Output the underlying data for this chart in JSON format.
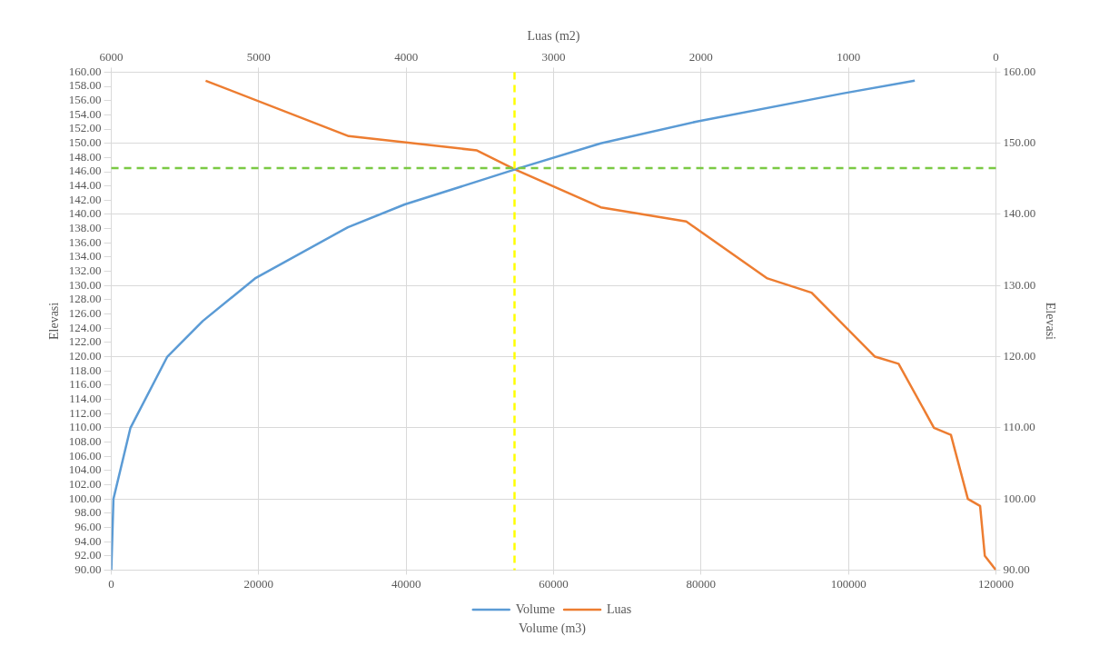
{
  "chart_data": {
    "type": "line",
    "xlabel": "Volume (m3)",
    "x2label": "Luas (m2)",
    "ylabel": "Elevasi",
    "y2label": "Elevasi",
    "xlim": [
      0,
      120000
    ],
    "xticks": [
      0,
      20000,
      40000,
      60000,
      80000,
      100000,
      120000
    ],
    "x2lim": [
      6000,
      0
    ],
    "x2ticks": [
      6000,
      5000,
      4000,
      3000,
      2000,
      1000,
      0
    ],
    "ylim": [
      90,
      160
    ],
    "yticks": [
      {
        "value": 90,
        "label": "90.00"
      },
      {
        "value": 92,
        "label": "92.00"
      },
      {
        "value": 94,
        "label": "94.00"
      },
      {
        "value": 96,
        "label": "96.00"
      },
      {
        "value": 98,
        "label": "98.00"
      },
      {
        "value": 100,
        "label": "100.00"
      },
      {
        "value": 102,
        "label": "102.00"
      },
      {
        "value": 104,
        "label": "104.00"
      },
      {
        "value": 106,
        "label": "106.00"
      },
      {
        "value": 108,
        "label": "108.00"
      },
      {
        "value": 110,
        "label": "110.00"
      },
      {
        "value": 112,
        "label": "112.00"
      },
      {
        "value": 114,
        "label": "114.00"
      },
      {
        "value": 116,
        "label": "116.00"
      },
      {
        "value": 118,
        "label": "118.00"
      },
      {
        "value": 120,
        "label": "120.00"
      },
      {
        "value": 122,
        "label": "122.00"
      },
      {
        "value": 124,
        "label": "124.00"
      },
      {
        "value": 126,
        "label": "126.00"
      },
      {
        "value": 128,
        "label": "128.00"
      },
      {
        "value": 130,
        "label": "130.00"
      },
      {
        "value": 132,
        "label": "132.00"
      },
      {
        "value": 134,
        "label": "134.00"
      },
      {
        "value": 136,
        "label": "136.00"
      },
      {
        "value": 138,
        "label": "138.00"
      },
      {
        "value": 140,
        "label": "140.00"
      },
      {
        "value": 142,
        "label": "142.00"
      },
      {
        "value": 144,
        "label": "144.00"
      },
      {
        "value": 146,
        "label": "146.00"
      },
      {
        "value": 148,
        "label": "148.00"
      },
      {
        "value": 150,
        "label": "150.00"
      },
      {
        "value": 152,
        "label": "152.00"
      },
      {
        "value": 154,
        "label": "154.00"
      },
      {
        "value": 156,
        "label": "156.00"
      },
      {
        "value": 158,
        "label": "158.00"
      },
      {
        "value": 160,
        "label": "160.00"
      }
    ],
    "y2lim": [
      90,
      160
    ],
    "y2ticks": [
      {
        "value": 90,
        "label": "90.00"
      },
      {
        "value": 100,
        "label": "100.00"
      },
      {
        "value": 110,
        "label": "110.00"
      },
      {
        "value": 120,
        "label": "120.00"
      },
      {
        "value": 130,
        "label": "130.00"
      },
      {
        "value": 140,
        "label": "140.00"
      },
      {
        "value": 150,
        "label": "150.00"
      },
      {
        "value": 160,
        "label": "160.00"
      }
    ],
    "grid": true,
    "legend": "bottom",
    "marker": "none",
    "line_style": "solid",
    "series": [
      {
        "name": "Volume",
        "color": "#5b9bd5",
        "x": [
          0,
          290,
          2600,
          7600,
          12400,
          19500,
          32100,
          39800,
          54700,
          66400,
          79600,
          99200,
          109000
        ],
        "values": [
          90,
          100,
          110,
          120,
          125,
          131,
          138.2,
          141.4,
          146.3,
          150,
          153.1,
          157,
          158.8
        ]
      },
      {
        "name": "Luas",
        "color": "#ed7d31",
        "axis": "x2",
        "x": [
          5360,
          4390,
          3520,
          3260,
          2680,
          2100,
          1550,
          1250,
          820,
          660,
          420,
          305,
          190,
          107,
          75,
          0
        ],
        "values": [
          158.8,
          151,
          149,
          146.3,
          141,
          139,
          131,
          129,
          120,
          119,
          110,
          109,
          100,
          99,
          92,
          90
        ]
      }
    ],
    "ref_lines": [
      {
        "axis": "x",
        "value": 54700,
        "color": "#ffff00",
        "line_style": "dashed"
      },
      {
        "axis": "y",
        "value": 146.5,
        "color": "#7ac943",
        "line_style": "dashed"
      }
    ]
  }
}
